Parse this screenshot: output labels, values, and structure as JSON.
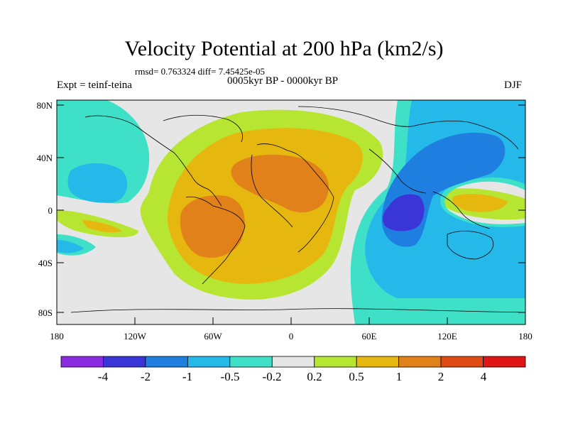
{
  "title": "Velocity Potential at 200 hPa (km2/s)",
  "stats": "rmsd= 0.763324 diff= 7.45425e-05",
  "experiment": "Expt = teinf-teina",
  "period": "0005kyr BP - 0000kyr BP",
  "season": "DJF",
  "lat_labels": [
    "80N",
    "40N",
    "0",
    "40S",
    "80S"
  ],
  "lon_labels": [
    "180",
    "120W",
    "60W",
    "0",
    "60E",
    "120E",
    "180"
  ],
  "colorbar": {
    "labels": [
      "-4",
      "-2",
      "-1",
      "-0.5",
      "-0.2",
      "0.2",
      "0.5",
      "1",
      "2",
      "4"
    ],
    "colors": [
      "#8a2be2",
      "#3a35d6",
      "#1e7fe0",
      "#25b9ea",
      "#3fe0c8",
      "#e6e6e6",
      "#b6e632",
      "#e6b80f",
      "#e08219",
      "#e04a14",
      "#e01515"
    ]
  }
}
